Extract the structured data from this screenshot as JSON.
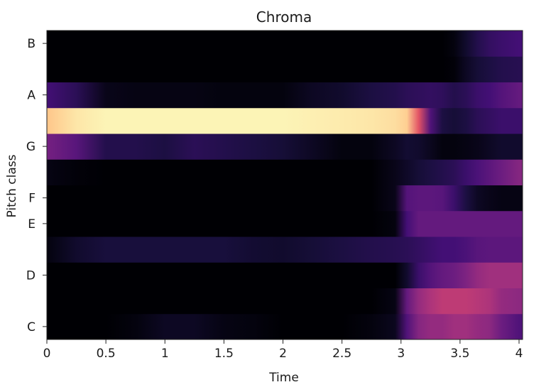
{
  "chart_data": {
    "type": "heatmap",
    "title": "Chroma",
    "xlabel": "Time",
    "ylabel": "Pitch class",
    "xlim": [
      0,
      4.03
    ],
    "x_ticks": [
      {
        "value": 0,
        "label": "0"
      },
      {
        "value": 0.5,
        "label": "0.5"
      },
      {
        "value": 1,
        "label": "1"
      },
      {
        "value": 1.5,
        "label": "1.5"
      },
      {
        "value": 2,
        "label": "2"
      },
      {
        "value": 2.5,
        "label": "2.5"
      },
      {
        "value": 3,
        "label": "3"
      },
      {
        "value": 3.5,
        "label": "3.5"
      },
      {
        "value": 4,
        "label": "4"
      }
    ],
    "rows": [
      "C",
      "C#",
      "D",
      "D#",
      "E",
      "F",
      "F#",
      "G",
      "G#",
      "A",
      "A#",
      "B"
    ],
    "y_tick_labels": [
      {
        "row": 0,
        "label": "C"
      },
      {
        "row": 2,
        "label": "D"
      },
      {
        "row": 4,
        "label": "E"
      },
      {
        "row": 5,
        "label": "F"
      },
      {
        "row": 7,
        "label": "G"
      },
      {
        "row": 9,
        "label": "A"
      },
      {
        "row": 11,
        "label": "B"
      }
    ],
    "colormap": [
      "#000004",
      "#180f3d",
      "#440f76",
      "#721f81",
      "#9e2f7f",
      "#cd4071",
      "#f1605d",
      "#fd9668",
      "#feca8d",
      "#fcfdbf"
    ],
    "time_points": [
      0,
      0.25,
      0.5,
      0.75,
      1.0,
      1.25,
      1.5,
      1.75,
      2.0,
      2.25,
      2.5,
      2.75,
      2.95,
      3.05,
      3.15,
      3.25,
      3.35,
      3.45,
      3.55,
      3.65,
      3.75,
      3.85,
      4.0
    ],
    "series": [
      {
        "name": "C",
        "values": [
          0.0,
          0.0,
          0.0,
          0.02,
          0.06,
          0.06,
          0.03,
          0.02,
          0.0,
          0.0,
          0.0,
          0.02,
          0.05,
          0.25,
          0.38,
          0.42,
          0.42,
          0.45,
          0.45,
          0.42,
          0.4,
          0.32,
          0.25
        ]
      },
      {
        "name": "C#",
        "values": [
          0.0,
          0.0,
          0.0,
          0.0,
          0.0,
          0.0,
          0.0,
          0.0,
          0.0,
          0.0,
          0.0,
          0.0,
          0.03,
          0.3,
          0.42,
          0.48,
          0.52,
          0.52,
          0.52,
          0.5,
          0.48,
          0.42,
          0.4
        ]
      },
      {
        "name": "D",
        "values": [
          0.0,
          0.0,
          0.0,
          0.0,
          0.0,
          0.0,
          0.0,
          0.0,
          0.0,
          0.0,
          0.0,
          0.0,
          0.0,
          0.08,
          0.2,
          0.26,
          0.3,
          0.32,
          0.36,
          0.42,
          0.45,
          0.45,
          0.45
        ]
      },
      {
        "name": "D#",
        "values": [
          0.02,
          0.08,
          0.11,
          0.11,
          0.11,
          0.11,
          0.11,
          0.09,
          0.08,
          0.1,
          0.12,
          0.14,
          0.15,
          0.16,
          0.18,
          0.2,
          0.22,
          0.22,
          0.24,
          0.27,
          0.28,
          0.28,
          0.28
        ]
      },
      {
        "name": "E",
        "values": [
          0.0,
          0.0,
          0.0,
          0.0,
          0.0,
          0.0,
          0.0,
          0.0,
          0.0,
          0.0,
          0.0,
          0.0,
          0.02,
          0.22,
          0.3,
          0.3,
          0.3,
          0.3,
          0.3,
          0.3,
          0.3,
          0.3,
          0.3
        ]
      },
      {
        "name": "F",
        "values": [
          0.0,
          0.0,
          0.0,
          0.0,
          0.0,
          0.0,
          0.0,
          0.0,
          0.0,
          0.0,
          0.0,
          0.0,
          0.04,
          0.26,
          0.28,
          0.28,
          0.27,
          0.2,
          0.12,
          0.06,
          0.04,
          0.03,
          0.03
        ]
      },
      {
        "name": "F#",
        "values": [
          0.03,
          0.01,
          0.0,
          0.0,
          0.0,
          0.0,
          0.0,
          0.0,
          0.0,
          0.0,
          0.0,
          0.0,
          0.04,
          0.07,
          0.1,
          0.12,
          0.14,
          0.16,
          0.2,
          0.24,
          0.28,
          0.32,
          0.38
        ]
      },
      {
        "name": "G",
        "values": [
          0.34,
          0.27,
          0.14,
          0.14,
          0.12,
          0.16,
          0.14,
          0.12,
          0.1,
          0.06,
          0.02,
          0.02,
          0.06,
          0.09,
          0.08,
          0.05,
          0.02,
          0.02,
          0.03,
          0.04,
          0.06,
          0.08,
          0.08
        ]
      },
      {
        "name": "G#",
        "values": [
          0.88,
          0.95,
          0.98,
          0.98,
          0.98,
          0.98,
          0.98,
          0.98,
          0.98,
          0.97,
          0.96,
          0.95,
          0.93,
          0.9,
          0.62,
          0.25,
          0.12,
          0.1,
          0.12,
          0.16,
          0.18,
          0.2,
          0.2
        ]
      },
      {
        "name": "A",
        "values": [
          0.22,
          0.16,
          0.04,
          0.03,
          0.03,
          0.03,
          0.02,
          0.02,
          0.02,
          0.06,
          0.08,
          0.12,
          0.14,
          0.16,
          0.17,
          0.18,
          0.17,
          0.14,
          0.16,
          0.2,
          0.22,
          0.26,
          0.3
        ]
      },
      {
        "name": "A#",
        "values": [
          0.0,
          0.0,
          0.0,
          0.0,
          0.0,
          0.0,
          0.0,
          0.0,
          0.0,
          0.0,
          0.0,
          0.0,
          0.0,
          0.0,
          0.0,
          0.0,
          0.0,
          0.01,
          0.06,
          0.1,
          0.12,
          0.14,
          0.15
        ]
      },
      {
        "name": "B",
        "values": [
          0.0,
          0.0,
          0.0,
          0.0,
          0.0,
          0.0,
          0.0,
          0.0,
          0.0,
          0.0,
          0.0,
          0.0,
          0.0,
          0.0,
          0.0,
          0.0,
          0.0,
          0.02,
          0.08,
          0.14,
          0.18,
          0.2,
          0.22
        ]
      }
    ],
    "grid": false,
    "legend": "none"
  }
}
